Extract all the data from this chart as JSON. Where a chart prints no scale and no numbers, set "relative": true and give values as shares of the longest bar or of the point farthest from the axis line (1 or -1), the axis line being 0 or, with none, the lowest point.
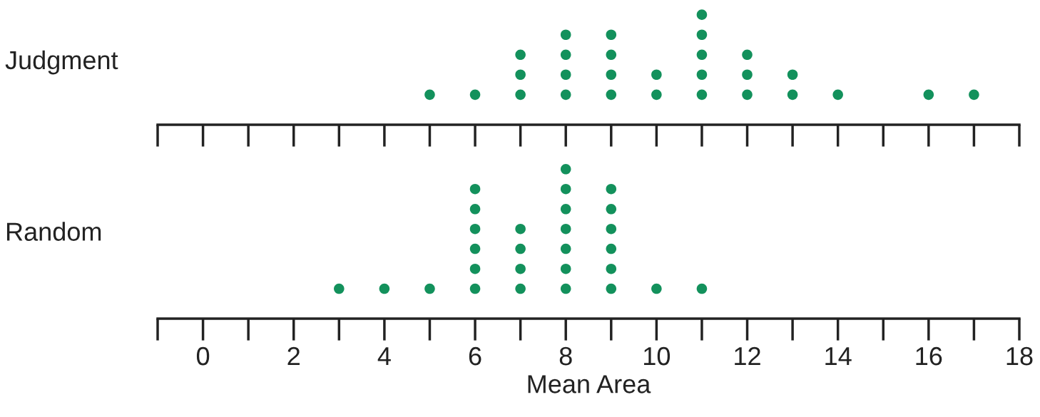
{
  "chart_data": [
    {
      "type": "scatter",
      "ylabel": "Judgment",
      "relative": true,
      "x": [
        5,
        6,
        7,
        7,
        7,
        8,
        8,
        8,
        8,
        9,
        9,
        9,
        9,
        10,
        10,
        11,
        11,
        11,
        11,
        11,
        12,
        12,
        12,
        13,
        13,
        14,
        16,
        17
      ],
      "values": [
        0.273,
        0.273,
        0.273,
        0.455,
        0.636,
        0.273,
        0.455,
        0.636,
        0.818,
        0.273,
        0.455,
        0.636,
        0.818,
        0.273,
        0.455,
        0.273,
        0.455,
        0.636,
        0.818,
        1,
        0.273,
        0.455,
        0.636,
        0.273,
        0.455,
        0.273,
        0.273,
        0.273
      ],
      "color": "#13915c",
      "marker": "circle",
      "grid": false,
      "tick_labels": false,
      "xlim": [
        -1,
        18
      ],
      "xticks": [
        0,
        2,
        4,
        6,
        8,
        10,
        12,
        14,
        16,
        18
      ]
    },
    {
      "type": "scatter",
      "ylabel": "Random",
      "xlabel": "Mean Area",
      "relative": true,
      "x": [
        3,
        4,
        5,
        6,
        6,
        6,
        6,
        6,
        6,
        7,
        7,
        7,
        7,
        8,
        8,
        8,
        8,
        8,
        8,
        8,
        9,
        9,
        9,
        9,
        9,
        9,
        10,
        11
      ],
      "values": [
        0.2,
        0.2,
        0.2,
        0.2,
        0.333,
        0.467,
        0.6,
        0.733,
        0.867,
        0.2,
        0.333,
        0.467,
        0.6,
        0.2,
        0.333,
        0.467,
        0.6,
        0.733,
        0.867,
        1,
        0.2,
        0.333,
        0.467,
        0.6,
        0.733,
        0.867,
        0.2,
        0.2
      ],
      "color": "#13915c",
      "marker": "circle",
      "grid": false,
      "tick_labels": "x",
      "xlim": [
        -1,
        18
      ],
      "xticks": [
        0,
        2,
        4,
        6,
        8,
        10,
        12,
        14,
        16,
        18
      ]
    }
  ]
}
